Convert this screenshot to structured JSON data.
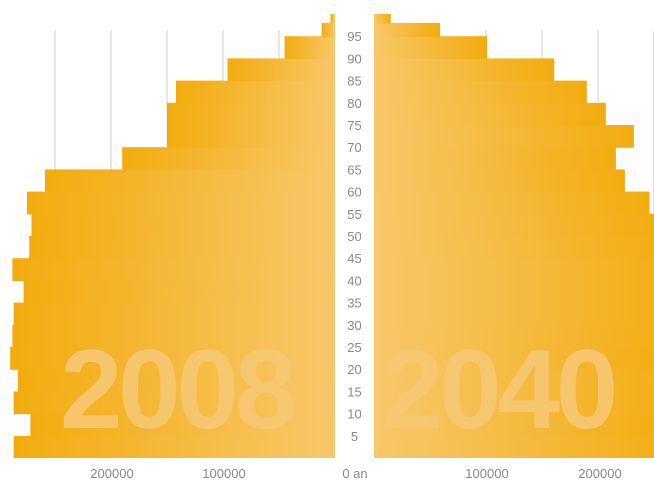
{
  "chart_data": {
    "type": "bar",
    "subtype": "population-pyramid",
    "age_unit_label": "an",
    "age_ticks": [
      5,
      10,
      15,
      20,
      25,
      30,
      35,
      40,
      45,
      50,
      55,
      60,
      65,
      70,
      75,
      80,
      85,
      90,
      95
    ],
    "x_tick_labels": {
      "left": [
        "200000",
        "100000"
      ],
      "center": "0 an",
      "right": [
        "100000",
        "200000"
      ]
    },
    "x_tick_values": [
      100000,
      200000
    ],
    "grid": true,
    "colors": {
      "bar": "#f4b21a",
      "bar_light": "#f8c86a",
      "grid": "#cfcfcf",
      "year_text": "#f7c873"
    },
    "series": [
      {
        "year_label": "2008",
        "side": "left",
        "ages": [
          0,
          5,
          10,
          15,
          20,
          25,
          30,
          35,
          40,
          45,
          50,
          55,
          60,
          65,
          70,
          75,
          80,
          85,
          90,
          95,
          98
        ],
        "values": [
          287000,
          272000,
          287000,
          283000,
          290000,
          288000,
          287000,
          278000,
          288000,
          273000,
          271000,
          275000,
          259000,
          190000,
          150000,
          150000,
          142000,
          96000,
          45000,
          12000,
          4000
        ]
      },
      {
        "year_label": "2040",
        "side": "right",
        "ages": [
          0,
          5,
          10,
          15,
          20,
          25,
          30,
          35,
          40,
          45,
          50,
          55,
          60,
          65,
          70,
          75,
          80,
          85,
          90,
          95,
          98
        ],
        "values": [
          285000,
          272000,
          285000,
          285000,
          270000,
          279000,
          285000,
          285000,
          285000,
          270000,
          256000,
          246000,
          224000,
          216000,
          232000,
          207000,
          190000,
          161000,
          101000,
          59000,
          15000
        ]
      }
    ]
  }
}
